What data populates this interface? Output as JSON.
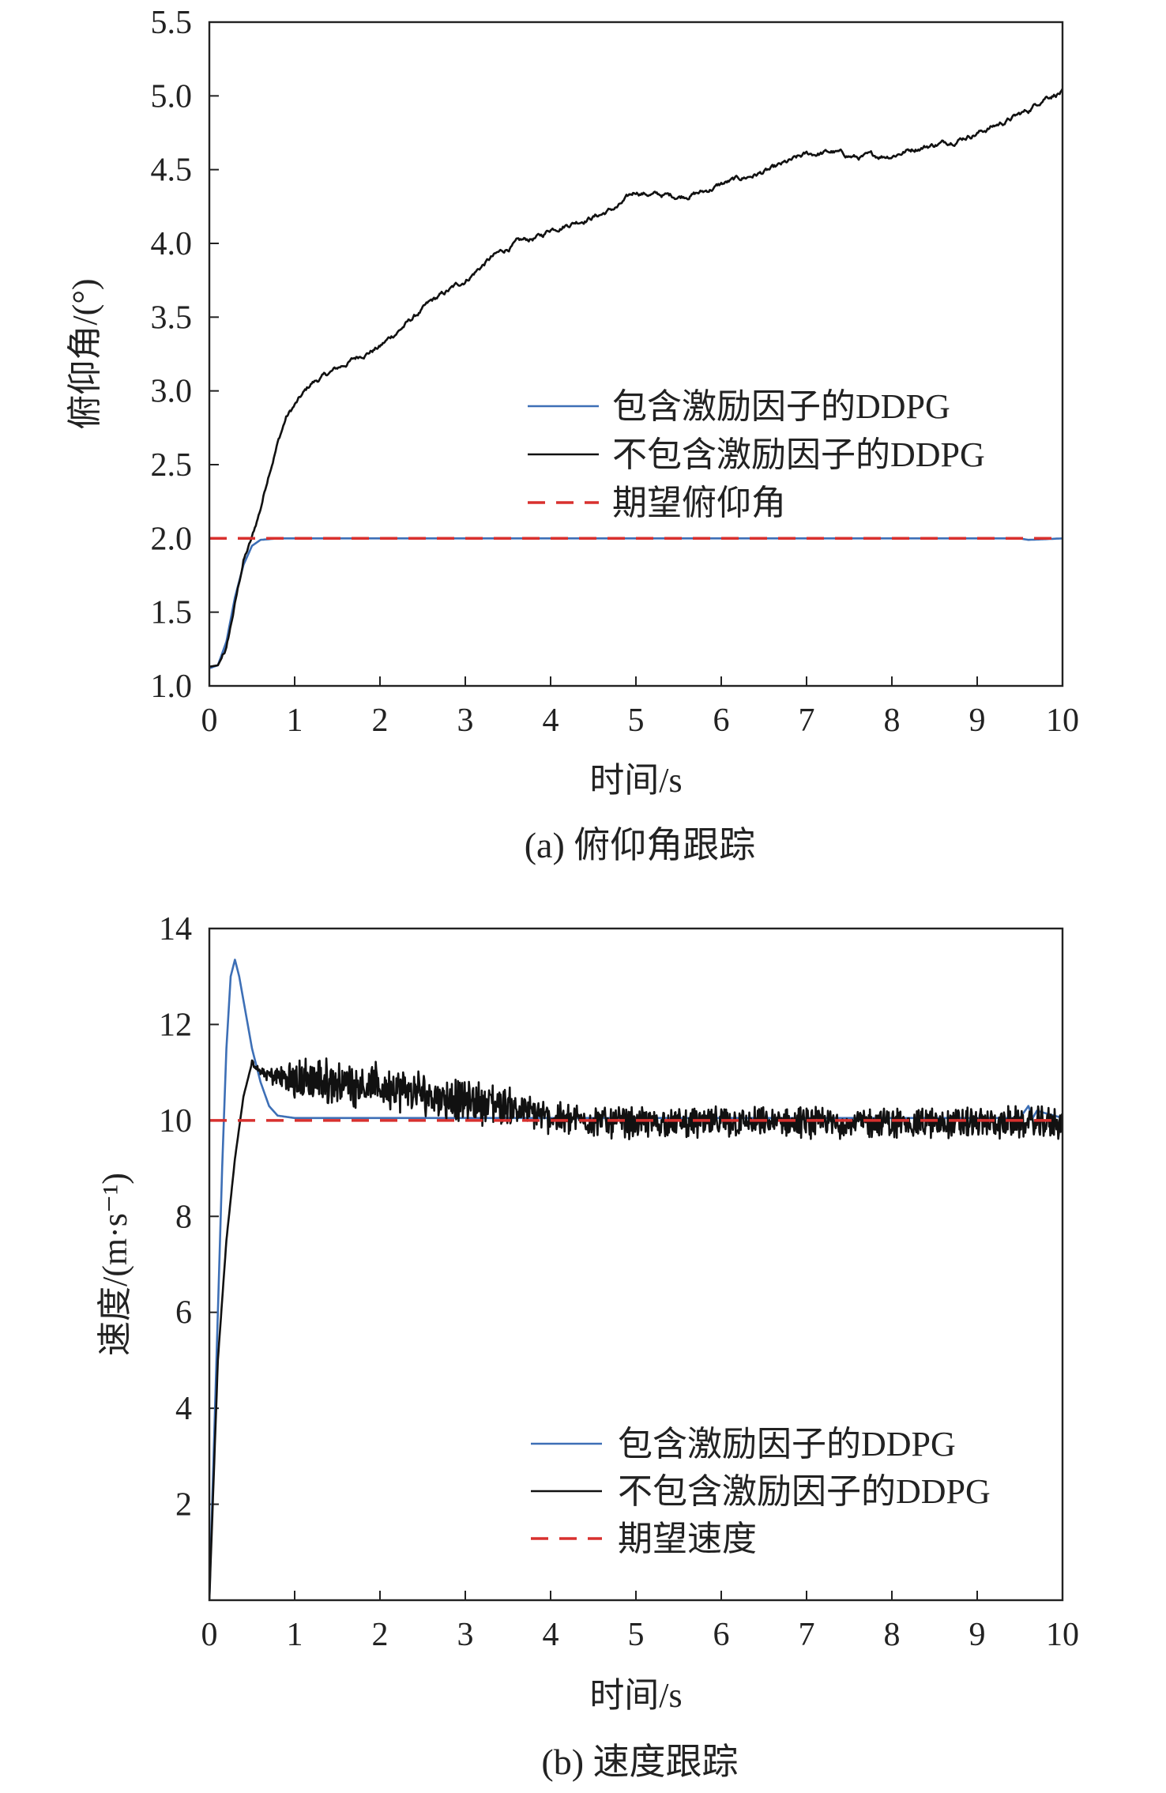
{
  "chart_data": [
    {
      "type": "line",
      "caption": "(a) 俯仰角跟踪",
      "xlabel": "时间/s",
      "ylabel": "俯仰角/(°)",
      "xlim": [
        0,
        10
      ],
      "ylim": [
        1.0,
        5.5
      ],
      "xticks": [
        "0",
        "1",
        "2",
        "3",
        "4",
        "5",
        "6",
        "7",
        "8",
        "9",
        "10"
      ],
      "yticks": [
        "1.0",
        "1.5",
        "2.0",
        "2.5",
        "3.0",
        "3.5",
        "4.0",
        "4.5",
        "5.0",
        "5.5"
      ],
      "legend_position": "middle-right",
      "series": [
        {
          "name": "包含激励因子的DDPG",
          "color": "#3d6fb6",
          "style": "solid",
          "x": [
            0,
            0.1,
            0.2,
            0.3,
            0.4,
            0.5,
            0.6,
            0.8,
            1.0,
            2,
            4,
            6,
            8,
            9.5,
            9.6,
            10
          ],
          "y": [
            1.12,
            1.14,
            1.3,
            1.6,
            1.82,
            1.95,
            1.99,
            2.0,
            2.0,
            2.0,
            2.0,
            2.0,
            2.0,
            2.0,
            1.99,
            2.0
          ]
        },
        {
          "name": "不包含激励因子的DDPG",
          "color": "#111111",
          "style": "solid",
          "noise": 0.012,
          "x": [
            0,
            0.1,
            0.2,
            0.3,
            0.4,
            0.5,
            0.6,
            0.7,
            0.8,
            0.9,
            1.0,
            1.2,
            1.5,
            1.8,
            2.0,
            2.3,
            2.6,
            3.0,
            3.3,
            3.6,
            3.9,
            4.0,
            4.3,
            4.6,
            4.8,
            5.0,
            5.2,
            5.5,
            5.8,
            6.0,
            6.3,
            6.6,
            7.0,
            7.3,
            7.6,
            8.0,
            8.3,
            8.6,
            9.0,
            9.3,
            9.6,
            9.8,
            10.0
          ],
          "y": [
            1.13,
            1.14,
            1.25,
            1.55,
            1.85,
            2.0,
            2.2,
            2.45,
            2.65,
            2.82,
            2.9,
            3.05,
            3.15,
            3.25,
            3.3,
            3.45,
            3.6,
            3.75,
            3.9,
            4.0,
            4.05,
            4.1,
            4.15,
            4.2,
            4.25,
            4.35,
            4.33,
            4.32,
            4.35,
            4.4,
            4.45,
            4.5,
            4.6,
            4.62,
            4.58,
            4.6,
            4.65,
            4.68,
            4.75,
            4.82,
            4.9,
            5.0,
            5.03
          ]
        },
        {
          "name": "期望俯仰角",
          "color": "#d8302e",
          "style": "dashed",
          "x": [
            0,
            10
          ],
          "y": [
            2.0,
            2.0
          ]
        }
      ]
    },
    {
      "type": "line",
      "caption": "(b) 速度跟踪",
      "xlabel": "时间/s",
      "ylabel": "速度/(m·s⁻¹)",
      "xlim": [
        0,
        10
      ],
      "ylim": [
        0,
        14
      ],
      "xticks": [
        "0",
        "1",
        "2",
        "3",
        "4",
        "5",
        "6",
        "7",
        "8",
        "9",
        "10"
      ],
      "yticks": [
        "2",
        "4",
        "6",
        "8",
        "10",
        "12",
        "14"
      ],
      "legend_position": "bottom-right",
      "series": [
        {
          "name": "包含激励因子的DDPG",
          "color": "#3d6fb6",
          "style": "solid",
          "x": [
            0,
            0.05,
            0.1,
            0.15,
            0.2,
            0.25,
            0.3,
            0.35,
            0.4,
            0.5,
            0.6,
            0.7,
            0.8,
            1.0,
            2.0,
            4.0,
            6.0,
            8.0,
            9.5,
            9.6,
            9.65,
            9.7,
            10.0
          ],
          "y": [
            0,
            3.0,
            6.0,
            9.0,
            11.5,
            13.0,
            13.35,
            13.0,
            12.5,
            11.5,
            10.8,
            10.3,
            10.1,
            10.05,
            10.05,
            10.05,
            10.05,
            10.05,
            10.05,
            10.3,
            10.05,
            10.2,
            10.05
          ]
        },
        {
          "name": "不包含激励因子的DDPG",
          "color": "#111111",
          "style": "solid",
          "noise_amp": [
            [
              0.6,
              0.05
            ],
            [
              1.0,
              0.35
            ],
            [
              3.5,
              0.35
            ],
            [
              3.6,
              0.25
            ],
            [
              10.0,
              0.25
            ]
          ],
          "x": [
            0,
            0.1,
            0.2,
            0.3,
            0.4,
            0.5,
            0.6,
            0.8,
            1.0,
            1.5,
            2.0,
            2.5,
            3.0,
            3.5,
            4.0,
            5.0,
            6.0,
            7.0,
            8.0,
            9.0,
            10.0
          ],
          "y": [
            0,
            5.0,
            7.5,
            9.2,
            10.5,
            11.2,
            11.0,
            10.9,
            10.85,
            10.8,
            10.7,
            10.55,
            10.4,
            10.3,
            10.05,
            9.95,
            9.95,
            9.95,
            9.95,
            9.95,
            9.95
          ]
        },
        {
          "name": "期望速度",
          "color": "#d8302e",
          "style": "dashed",
          "x": [
            0,
            10
          ],
          "y": [
            10,
            10
          ]
        }
      ]
    }
  ]
}
